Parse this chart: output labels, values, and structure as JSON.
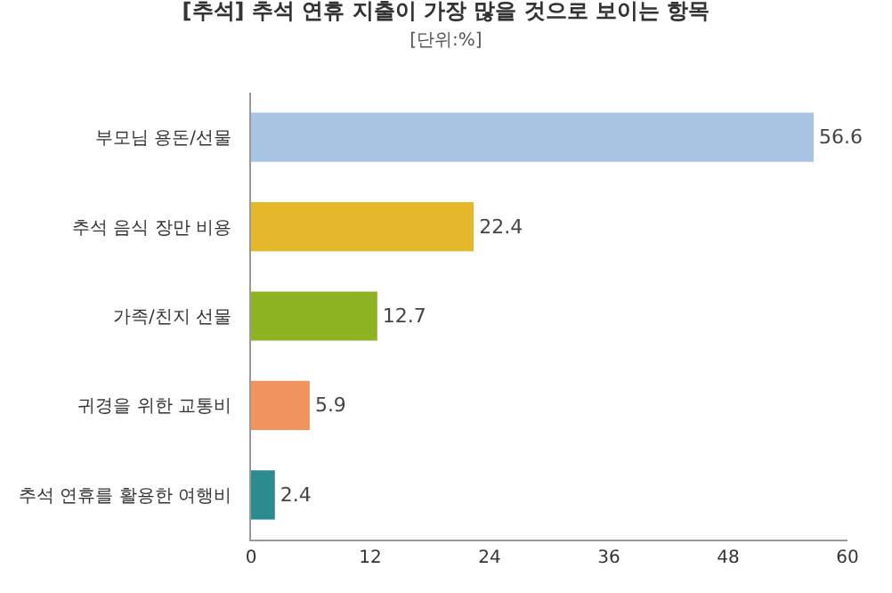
{
  "chart_data": {
    "type": "bar",
    "orientation": "horizontal",
    "title": "[추석] 추석 연휴 지출이 가장 많을 것으로 보이는 항목",
    "subtitle": "[단위:%]",
    "categories": [
      "부모님 용돈/선물",
      "추석 음식 장만 비용",
      "가족/친지 선물",
      "귀경을 위한 교통비",
      "추석 연휴를 활용한 여행비"
    ],
    "values": [
      56.6,
      22.4,
      12.7,
      5.9,
      2.4
    ],
    "colors": [
      "#a9c4e2",
      "#e5b82c",
      "#8db322",
      "#f0935c",
      "#2b8b8e"
    ],
    "xlim": [
      0,
      60
    ],
    "xticks": [
      0,
      12,
      24,
      36,
      48,
      60
    ],
    "data_labels": true
  }
}
